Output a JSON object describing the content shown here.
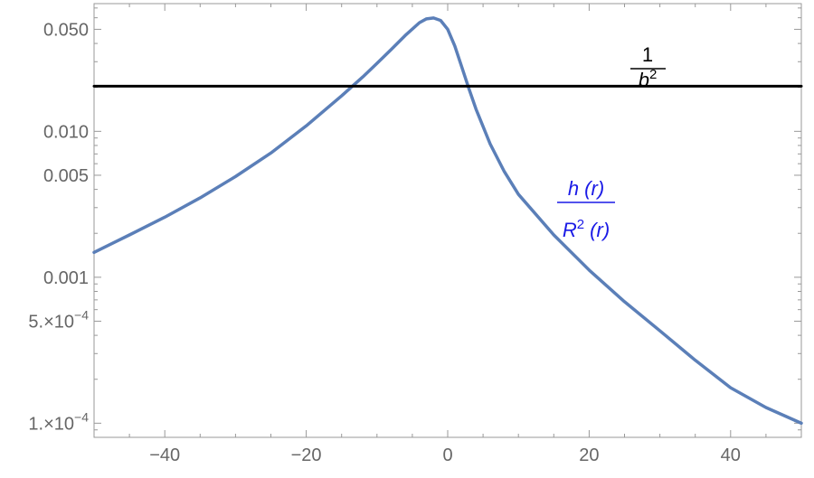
{
  "chart_data": {
    "type": "line",
    "title": "",
    "xlabel": "",
    "ylabel": "",
    "xlim": [
      -50,
      50
    ],
    "ylim": [
      8e-05,
      0.075
    ],
    "y_scale": "log",
    "x_ticks": [
      {
        "value": -40,
        "label": "−40"
      },
      {
        "value": -20,
        "label": "−20"
      },
      {
        "value": 0,
        "label": "0"
      },
      {
        "value": 20,
        "label": "20"
      },
      {
        "value": 40,
        "label": "40"
      }
    ],
    "y_ticks": [
      {
        "value": 0.05,
        "label": "0.050",
        "sup": ""
      },
      {
        "value": 0.01,
        "label": "0.010",
        "sup": ""
      },
      {
        "value": 0.005,
        "label": "0.005",
        "sup": ""
      },
      {
        "value": 0.001,
        "label": "0.001",
        "sup": ""
      },
      {
        "value": 0.0005,
        "label": "5.×10",
        "sup": "−4"
      },
      {
        "value": 0.0001,
        "label": "1.×10",
        "sup": "−4"
      }
    ],
    "grid": false,
    "series": [
      {
        "color": "#5b7fb8",
        "x": [
          -50,
          -45,
          -40,
          -35,
          -30,
          -25,
          -20,
          -15,
          -12,
          -10,
          -8,
          -6,
          -4,
          -3,
          -2,
          -1,
          0,
          1,
          2,
          3,
          4,
          6,
          8,
          10,
          15,
          20,
          25,
          30,
          35,
          40,
          45,
          50
        ],
        "y": [
          0.00148,
          0.00195,
          0.00258,
          0.0035,
          0.0049,
          0.0071,
          0.0109,
          0.0175,
          0.0236,
          0.0292,
          0.0363,
          0.0454,
          0.0555,
          0.059,
          0.0598,
          0.0575,
          0.05,
          0.0385,
          0.0275,
          0.0196,
          0.0142,
          0.0082,
          0.0053,
          0.0037,
          0.00195,
          0.00112,
          0.00068,
          0.00043,
          0.00027,
          0.000175,
          0.000128,
          0.0001
        ]
      },
      {
        "color": "#000000",
        "x": [
          -50,
          50
        ],
        "y": [
          0.0204,
          0.0204
        ]
      }
    ],
    "annotations": [
      {
        "id": "one-over-b2",
        "numerator": "1",
        "denominator_base": "b",
        "denominator_sup": "2",
        "color": "#000000"
      },
      {
        "id": "h-over-R2",
        "numerator": "h (r)",
        "denominator_base": "R",
        "denominator_sup": "2",
        "denominator_tail": " (r)",
        "color": "#1a1ae6"
      }
    ]
  }
}
